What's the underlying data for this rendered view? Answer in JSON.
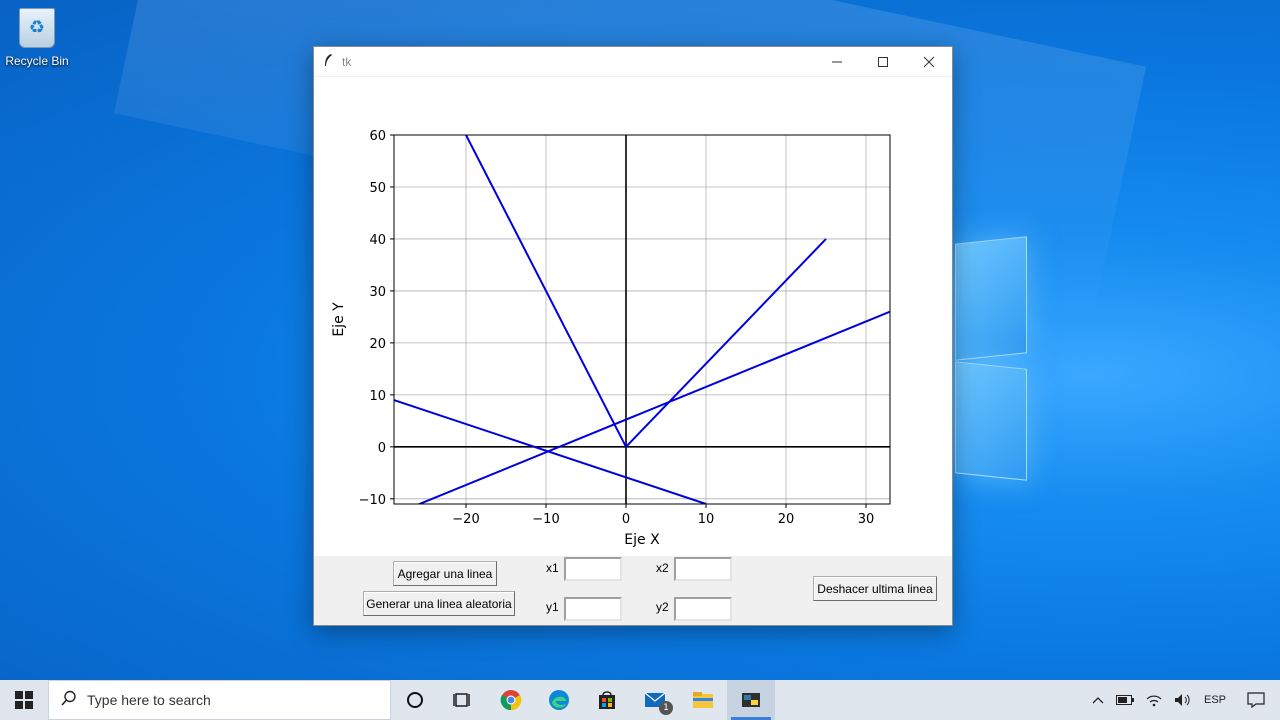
{
  "desktop": {
    "icons": [
      {
        "label": "Recycle Bin",
        "icon": "recycle-bin-icon"
      }
    ]
  },
  "window": {
    "title": "tk",
    "app_icon": "feather-icon",
    "buttons": {
      "minimize": "—",
      "maximize": "☐",
      "close": "✕"
    }
  },
  "chart_data": {
    "type": "line",
    "xlabel": "Eje X",
    "ylabel": "Eje Y",
    "xlim": [
      -29,
      33
    ],
    "ylim": [
      -11,
      60
    ],
    "xticks": [
      -20,
      -10,
      0,
      10,
      20,
      30
    ],
    "xtick_labels": [
      "−20",
      "−10",
      "0",
      "10",
      "20",
      "30"
    ],
    "yticks": [
      -10,
      0,
      10,
      20,
      30,
      40,
      50,
      60
    ],
    "ytick_labels": [
      "−10",
      "0",
      "10",
      "20",
      "30",
      "40",
      "50",
      "60"
    ],
    "grid": true,
    "axis_lines_at_zero": true,
    "line_color": "#0000e0",
    "series": [
      {
        "x": [
          -20,
          0
        ],
        "y": [
          60,
          0
        ]
      },
      {
        "x": [
          0,
          25
        ],
        "y": [
          0,
          40
        ]
      },
      {
        "x": [
          -29,
          33
        ],
        "y": [
          -13,
          26
        ]
      },
      {
        "x": [
          -29,
          10
        ],
        "y": [
          9,
          -11
        ]
      }
    ]
  },
  "controls": {
    "add_line_button": "Agregar una linea",
    "random_line_button": "Generar una linea aleatoria",
    "undo_button": "Deshacer ultima linea",
    "x1_label": "x1",
    "y1_label": "y1",
    "x2_label": "x2",
    "y2_label": "y2",
    "x1_value": "",
    "y1_value": "",
    "x2_value": "",
    "y2_value": ""
  },
  "taskbar": {
    "search_placeholder": "Type here to search",
    "apps": [
      "cortana-icon",
      "task-view-icon",
      "chrome-icon",
      "edge-icon",
      "store-icon",
      "mail-icon",
      "file-explorer-icon",
      "python-icon"
    ],
    "mail_badge": "1",
    "tray": {
      "language": "ESP"
    }
  }
}
